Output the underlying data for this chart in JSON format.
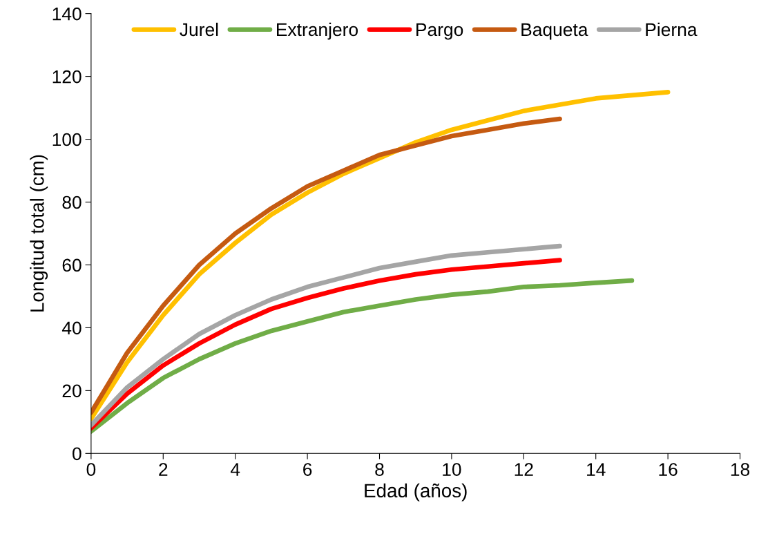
{
  "chart_data": {
    "type": "line",
    "xlabel": "Edad (años)",
    "ylabel": "Longitud total (cm)",
    "x": [
      0,
      1,
      2,
      3,
      4,
      5,
      6,
      7,
      8,
      9,
      10,
      11,
      12,
      13,
      14,
      15,
      16
    ],
    "xlim": [
      0,
      18
    ],
    "xticks": [
      0,
      2,
      4,
      6,
      8,
      10,
      12,
      14,
      16,
      18
    ],
    "ylim": [
      0,
      140
    ],
    "yticks": [
      0,
      20,
      40,
      60,
      80,
      100,
      120,
      140
    ],
    "grid": false,
    "legend": "top",
    "marker": "none",
    "line_style": "solid",
    "series": [
      {
        "name": "Jurel",
        "color": "#ffc000",
        "values": [
          11,
          29,
          44,
          57,
          67,
          76,
          83,
          89,
          94,
          99,
          103,
          106,
          109,
          111,
          113,
          114,
          115
        ]
      },
      {
        "name": "Extranjero",
        "color": "#70ad47",
        "values": [
          7,
          16,
          24,
          30,
          35,
          39,
          42,
          45,
          47,
          49,
          50.5,
          51.5,
          53,
          53.5,
          54.3,
          55,
          null
        ]
      },
      {
        "name": "Pargo",
        "color": "#ff0000",
        "values": [
          8,
          19,
          28,
          35,
          41,
          46,
          49.5,
          52.5,
          55,
          57,
          58.5,
          59.5,
          60.5,
          61.5,
          null,
          null,
          null
        ]
      },
      {
        "name": "Baqueta",
        "color": "#c55a11",
        "values": [
          13,
          32,
          47,
          60,
          70,
          78,
          85,
          90,
          95,
          98,
          101,
          103,
          105,
          106.5,
          null,
          null,
          null
        ]
      },
      {
        "name": "Pierna",
        "color": "#a5a5a5",
        "values": [
          9,
          21,
          30,
          38,
          44,
          49,
          53,
          56,
          59,
          61,
          63,
          64,
          65,
          66,
          null,
          null,
          null
        ]
      }
    ]
  }
}
